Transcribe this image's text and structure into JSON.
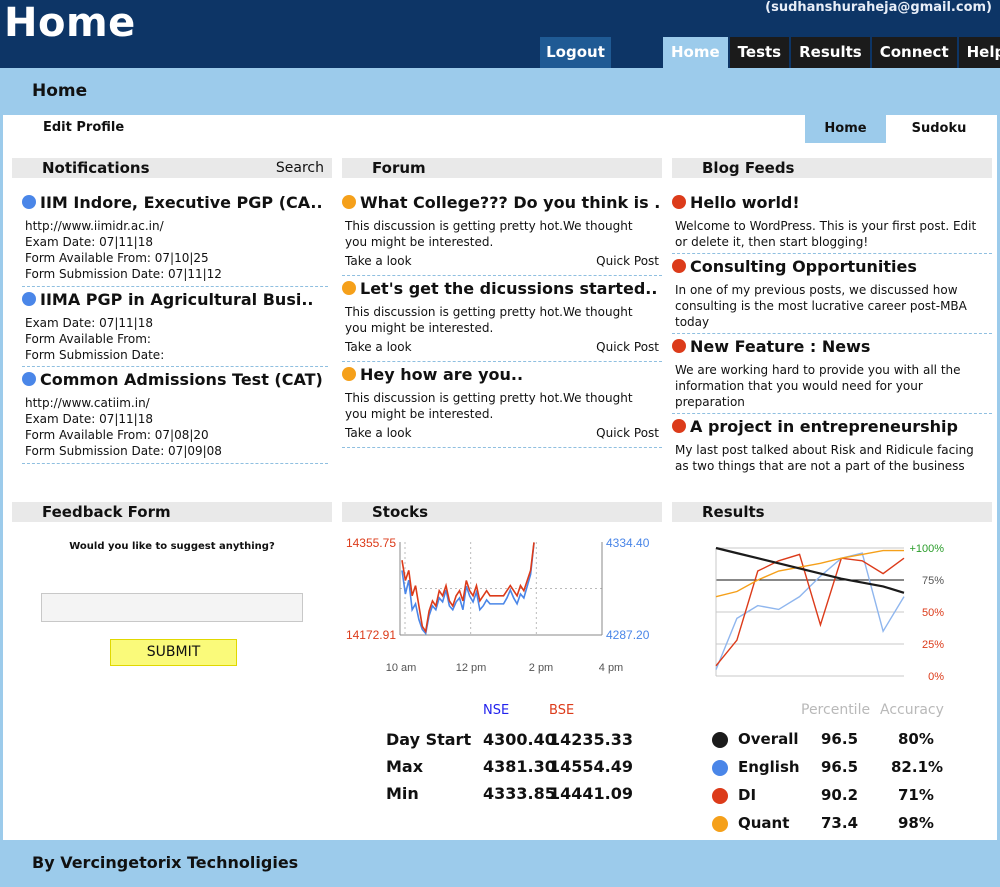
{
  "header": {
    "title": "Home",
    "email": "(sudhanshuraheja@gmail.com)",
    "logout": "Logout",
    "nav": [
      "Home",
      "Tests",
      "Results",
      "Connect",
      "Help"
    ]
  },
  "subheader": {
    "title": "Home",
    "edit_profile": "Edit Profile",
    "tabs": [
      "Home",
      "Sudoku"
    ]
  },
  "notifications": {
    "title": "Notifications",
    "search": "Search",
    "items": [
      {
        "title": "IIM Indore, Executive PGP (CA..",
        "lines": [
          "http://www.iimidr.ac.in/",
          "Exam Date: 07|11|18",
          "Form Available From: 07|10|25",
          "Form Submission Date: 07|11|12"
        ]
      },
      {
        "title": "IIMA PGP in Agricultural Busi..",
        "lines": [
          "Exam Date: 07|11|18",
          "Form Available From:",
          "Form Submission Date:"
        ]
      },
      {
        "title": "Common Admissions Test (CAT) ..",
        "lines": [
          "http://www.catiim.in/",
          "Exam Date: 07|11|18",
          "Form Available From: 07|08|20",
          "Form Submission Date: 07|09|08"
        ]
      }
    ]
  },
  "forum": {
    "title": "Forum",
    "items": [
      {
        "title": "What College??? Do you think is ..",
        "lines": [
          "This discussion is getting pretty hot.We thought",
          "you might be interested."
        ],
        "look": "Take a look",
        "post": "Quick Post"
      },
      {
        "title": "Let's get the dicussions started..",
        "lines": [
          "This discussion is getting pretty hot.We thought",
          "you might be interested."
        ],
        "look": "Take a look",
        "post": "Quick Post"
      },
      {
        "title": "Hey how are you..",
        "lines": [
          "This discussion is getting pretty hot.We thought",
          "you might be interested."
        ],
        "look": "Take a look",
        "post": "Quick Post"
      }
    ]
  },
  "blog": {
    "title": "Blog Feeds",
    "items": [
      {
        "title": "Hello world!",
        "lines": [
          "Welcome to WordPress. This is your first post. Edit",
          "or delete it, then start blogging!"
        ]
      },
      {
        "title": "Consulting Opportunities",
        "lines": [
          "In one of my previous posts, we discussed how",
          "consulting is the most lucrative career post-MBA",
          "today"
        ]
      },
      {
        "title": "New Feature : News",
        "lines": [
          "We are working hard to provide you with all the",
          "information that you would need for your",
          "preparation"
        ]
      },
      {
        "title": "A project in entrepreneurship",
        "lines": [
          "My last post talked about Risk and Ridicule facing",
          "as two things that are not a part of the business"
        ]
      }
    ]
  },
  "feedback": {
    "title": "Feedback Form",
    "question": "Would you like to suggest anything?",
    "input_value": "",
    "submit": "SUBMIT"
  },
  "stocks": {
    "title": "Stocks",
    "table": {
      "headers": [
        "NSE",
        "BSE"
      ],
      "rows": [
        {
          "label": "Day Start",
          "nse": "4300.40",
          "bse": "14235.33"
        },
        {
          "label": "Max",
          "nse": "4381.30",
          "bse": "14554.49"
        },
        {
          "label": "Min",
          "nse": "4333.85",
          "bse": "14441.09"
        }
      ]
    },
    "chart": {
      "left_top": "14355.75",
      "left_bottom": "14172.91",
      "right_top": "4334.40",
      "right_bottom": "4287.20",
      "x_ticks": [
        "10 am",
        "12 pm",
        "2 pm",
        "4 pm"
      ]
    }
  },
  "results": {
    "title": "Results",
    "chart": {
      "y_ticks": [
        "+100%",
        "75%",
        "50%",
        "25%",
        "0%"
      ]
    },
    "headers": [
      "Percentile",
      "Accuracy"
    ],
    "rows": [
      {
        "label": "Overall",
        "percentile": "96.5",
        "accuracy": "80%",
        "color": "#1b1b1b"
      },
      {
        "label": "English",
        "percentile": "96.5",
        "accuracy": "82.1%",
        "color": "#4a86e8"
      },
      {
        "label": "DI",
        "percentile": "90.2",
        "accuracy": "71%",
        "color": "#dc3b1a"
      },
      {
        "label": "Quant",
        "percentile": "73.4",
        "accuracy": "98%",
        "color": "#f5a01a"
      }
    ]
  },
  "footer": {
    "text": "By Vercingetorix Technoligies"
  },
  "chart_data": [
    {
      "type": "line",
      "x": [
        1,
        2,
        3,
        4,
        5,
        6,
        7,
        8,
        9,
        10,
        11,
        12,
        13,
        14,
        15,
        16,
        17,
        18,
        19,
        20,
        21,
        22,
        23,
        24,
        25,
        26,
        27,
        28,
        29,
        30,
        31,
        32,
        33,
        34,
        35,
        36,
        37,
        38,
        39,
        40
      ],
      "series": [
        {
          "name": "BSE",
          "values": [
            14320,
            14280,
            14300,
            14250,
            14270,
            14230,
            14190,
            14180,
            14220,
            14240,
            14230,
            14260,
            14250,
            14270,
            14240,
            14230,
            14250,
            14260,
            14240,
            14280,
            14260,
            14250,
            14270,
            14240,
            14250,
            14260,
            14250,
            14250,
            14250,
            14250,
            14250,
            14260,
            14270,
            14260,
            14250,
            14270,
            14260,
            14280,
            14300,
            14355
          ]
        },
        {
          "name": "NSE",
          "values": [
            4320,
            4308,
            4315,
            4300,
            4303,
            4295,
            4290,
            4288,
            4297,
            4302,
            4300,
            4306,
            4304,
            4310,
            4302,
            4300,
            4304,
            4306,
            4300,
            4312,
            4307,
            4304,
            4309,
            4300,
            4302,
            4305,
            4303,
            4303,
            4303,
            4303,
            4303,
            4306,
            4310,
            4306,
            4303,
            4308,
            4306,
            4312,
            4318,
            4334
          ]
        }
      ]
    },
    {
      "type": "line",
      "categories": [
        "1",
        "2",
        "3",
        "4",
        "5",
        "6",
        "7",
        "8",
        "9",
        "10"
      ],
      "ylim": [
        0,
        100
      ],
      "series": [
        {
          "name": "Overall",
          "values": [
            100,
            96,
            92,
            88,
            84,
            80,
            76,
            73,
            70,
            65
          ]
        },
        {
          "name": "English",
          "values": [
            5,
            45,
            55,
            52,
            62,
            78,
            92,
            96,
            35,
            62
          ]
        },
        {
          "name": "DI",
          "values": [
            8,
            28,
            82,
            90,
            95,
            40,
            92,
            90,
            80,
            92
          ]
        },
        {
          "name": "Quant",
          "values": [
            62,
            66,
            75,
            82,
            85,
            88,
            92,
            95,
            98,
            98
          ]
        }
      ]
    }
  ]
}
